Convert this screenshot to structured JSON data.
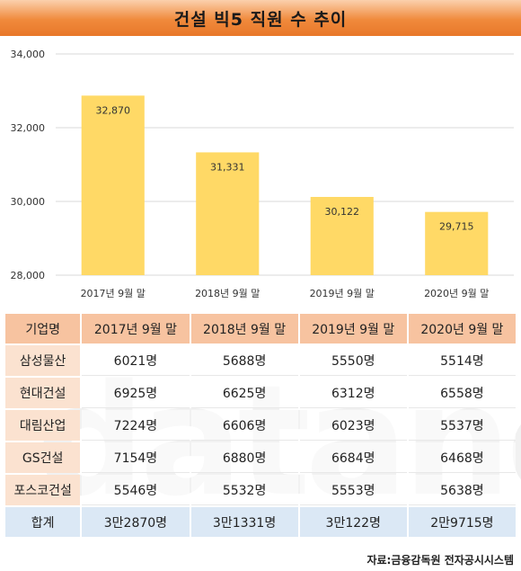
{
  "title": "건설 빅5 직원 수 추이",
  "chart_data": {
    "type": "bar",
    "categories": [
      "2017년 9월 말",
      "2018년 9월 말",
      "2019년 9월 말",
      "2020년 9월 말"
    ],
    "values": [
      32870,
      31331,
      30122,
      29715
    ],
    "value_labels": [
      "32,870",
      "31,331",
      "30,122",
      "29,715"
    ],
    "ylim": [
      28000,
      34000
    ],
    "yticks": [
      28000,
      30000,
      32000,
      34000
    ],
    "ytick_labels": [
      "28,000",
      "30,000",
      "32,000",
      "34,000"
    ],
    "grid": true,
    "bar_color": "#ffd966"
  },
  "table": {
    "header": [
      "기업명",
      "2017년 9월 말",
      "2018년 9월 말",
      "2019년 9월 말",
      "2020년 9월 말"
    ],
    "rows": [
      [
        "삼성물산",
        "6021명",
        "5688명",
        "5550명",
        "5514명"
      ],
      [
        "현대건설",
        "6925명",
        "6625명",
        "6312명",
        "6558명"
      ],
      [
        "대림산업",
        "7224명",
        "6606명",
        "6023명",
        "5537명"
      ],
      [
        "GS건설",
        "7154명",
        "6880명",
        "6684명",
        "6468명"
      ],
      [
        "포스코건설",
        "5546명",
        "5532명",
        "5553명",
        "5638명"
      ]
    ],
    "total": [
      "합계",
      "3만2870명",
      "3만1331명",
      "3만122명",
      "2만9715명"
    ]
  },
  "watermark": "datanews",
  "source": "자료:금융감독원 전자공시시스템"
}
